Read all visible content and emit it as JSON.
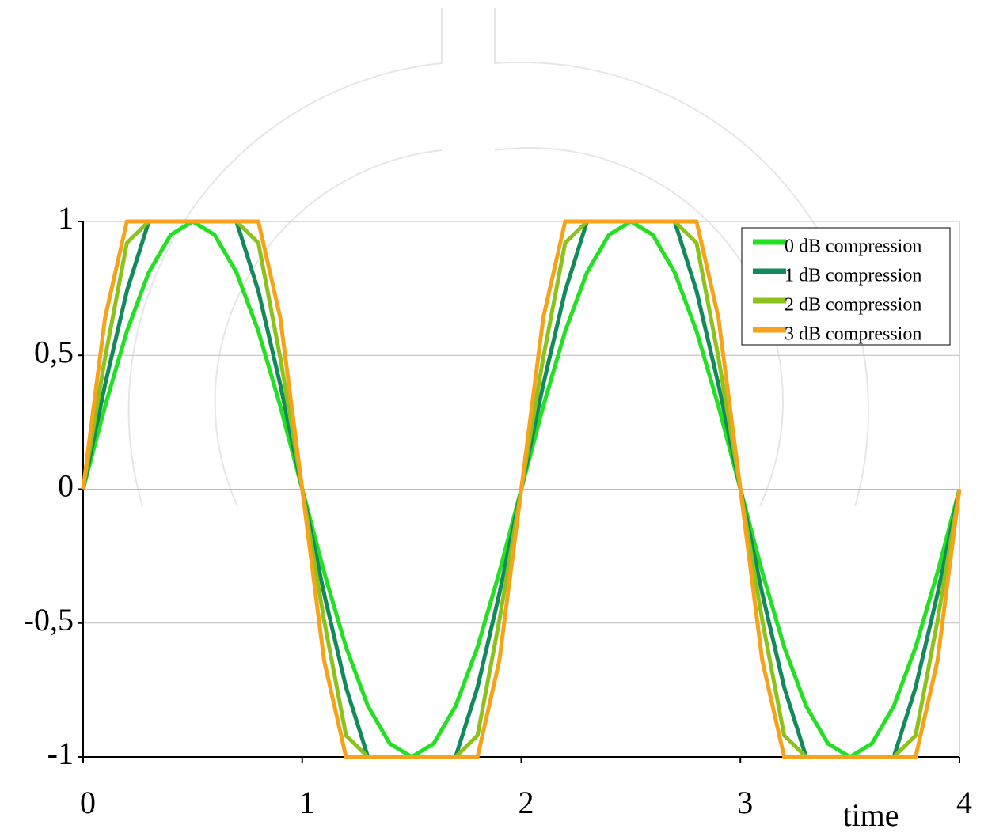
{
  "chart_data": {
    "type": "line",
    "xlabel": "time",
    "x": [
      0,
      0.1,
      0.2,
      0.3,
      0.4,
      0.5,
      0.6,
      0.7,
      0.8,
      0.9,
      1,
      1.1,
      1.2,
      1.3,
      1.4,
      1.5,
      1.6,
      1.7,
      1.8,
      1.9,
      2,
      2.1,
      2.2,
      2.3,
      2.4,
      2.5,
      2.6,
      2.7,
      2.8,
      2.9,
      3,
      3.1,
      3.2,
      3.3,
      3.4,
      3.5,
      3.6,
      3.7,
      3.8,
      3.9,
      4
    ],
    "series": [
      {
        "name": "0 dB compression",
        "color": "#22e022",
        "values": [
          0,
          0.31,
          0.59,
          0.81,
          0.95,
          1,
          0.95,
          0.81,
          0.59,
          0.31,
          0,
          -0.31,
          -0.59,
          -0.81,
          -0.95,
          -1,
          -0.95,
          -0.81,
          -0.59,
          -0.31,
          0,
          0.31,
          0.59,
          0.81,
          0.95,
          1,
          0.95,
          0.81,
          0.59,
          0.31,
          0,
          -0.31,
          -0.59,
          -0.81,
          -0.95,
          -1,
          -0.95,
          -0.81,
          -0.59,
          -0.31,
          0
        ]
      },
      {
        "name": "1 dB compression",
        "color": "#128a5c",
        "values": [
          0,
          0.39,
          0.74,
          1,
          1,
          1,
          1,
          1,
          0.74,
          0.39,
          0,
          -0.39,
          -0.74,
          -1,
          -1,
          -1,
          -1,
          -1,
          -0.74,
          -0.39,
          0,
          0.39,
          0.74,
          1,
          1,
          1,
          1,
          1,
          0.74,
          0.39,
          0,
          -0.39,
          -0.74,
          -1,
          -1,
          -1,
          -1,
          -1,
          -0.74,
          -0.39,
          0
        ]
      },
      {
        "name": "2 dB compression",
        "color": "#8cc21c",
        "values": [
          0,
          0.49,
          0.92,
          1,
          1,
          1,
          1,
          1,
          0.92,
          0.49,
          0,
          -0.49,
          -0.92,
          -1,
          -1,
          -1,
          -1,
          -1,
          -0.92,
          -0.49,
          0,
          0.49,
          0.92,
          1,
          1,
          1,
          1,
          1,
          0.92,
          0.49,
          0,
          -0.49,
          -0.92,
          -1,
          -1,
          -1,
          -1,
          -1,
          -0.92,
          -0.49,
          0
        ]
      },
      {
        "name": "3 dB compression",
        "color": "#f7a21b",
        "values": [
          0,
          0.64,
          1,
          1,
          1,
          1,
          1,
          1,
          1,
          0.64,
          0,
          -0.64,
          -1,
          -1,
          -1,
          -1,
          -1,
          -1,
          -1,
          -0.64,
          0,
          0.64,
          1,
          1,
          1,
          1,
          1,
          1,
          1,
          0.64,
          0,
          -0.64,
          -1,
          -1,
          -1,
          -1,
          -1,
          -1,
          -1,
          -0.64,
          0
        ]
      }
    ],
    "xlim": [
      0,
      4
    ],
    "xticks": [
      0,
      1,
      2,
      3,
      4
    ],
    "ylim": [
      -1,
      1
    ],
    "yticks": [
      -1,
      {
        "value": -0.5,
        "label": "-0,5"
      },
      0,
      {
        "value": 0.5,
        "label": "0,5"
      },
      1
    ],
    "grid": true,
    "legend": "upper right"
  }
}
